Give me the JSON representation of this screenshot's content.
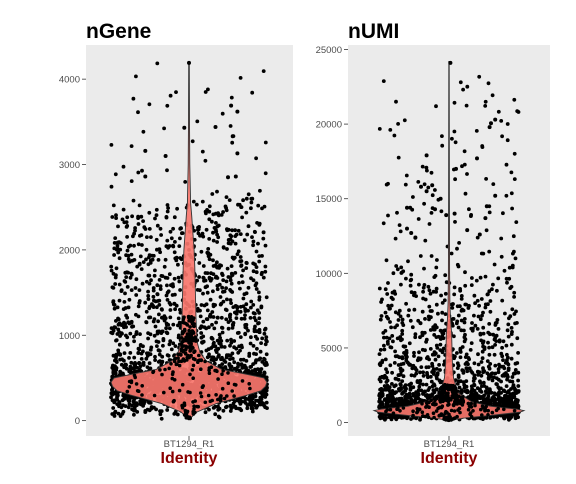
{
  "colors": {
    "panel_background": "#ebebeb",
    "violin_fill": "#f8766d",
    "violin_outline": "#333333",
    "point": "#000000",
    "axis_title": "#8b0000"
  },
  "chart_data": [
    {
      "type": "violin",
      "title": "nGene",
      "xlabel": "Identity",
      "ylabel": "",
      "categories": [
        "BT1294_R1"
      ],
      "ylim": [
        -180,
        4400
      ],
      "yticks": [
        0,
        1000,
        2000,
        3000,
        4000
      ],
      "grid": false,
      "legend": "none",
      "violin_profile": [
        [
          20,
          0.01
        ],
        [
          100,
          0.1
        ],
        [
          200,
          0.35
        ],
        [
          300,
          0.75
        ],
        [
          350,
          0.92
        ],
        [
          400,
          0.98
        ],
        [
          450,
          1.0
        ],
        [
          500,
          0.96
        ],
        [
          550,
          0.7
        ],
        [
          600,
          0.42
        ],
        [
          700,
          0.22
        ],
        [
          800,
          0.14
        ],
        [
          900,
          0.11
        ],
        [
          1000,
          0.1
        ],
        [
          1200,
          0.09
        ],
        [
          1400,
          0.085
        ],
        [
          1600,
          0.08
        ],
        [
          1800,
          0.075
        ],
        [
          2000,
          0.065
        ],
        [
          2200,
          0.05
        ],
        [
          2400,
          0.035
        ],
        [
          2550,
          0.02
        ],
        [
          3000,
          0.01
        ],
        [
          3500,
          0.007
        ],
        [
          4200,
          0.004
        ]
      ],
      "outliers": [
        {
          "x": 0.0,
          "y": 4190
        },
        {
          "x": 0.54,
          "y": 3690
        },
        {
          "x": 0.62,
          "y": 3620
        },
        {
          "x": -0.06,
          "y": 3430
        },
        {
          "x": 0.34,
          "y": 3440
        },
        {
          "x": 0.56,
          "y": 3330
        },
        {
          "x": -0.56,
          "y": 3160
        },
        {
          "x": -0.3,
          "y": 3100
        },
        {
          "x": 0.62,
          "y": 3130
        },
        {
          "x": -0.56,
          "y": 2860
        },
        {
          "x": 0.5,
          "y": 2850
        },
        {
          "x": 0.6,
          "y": 2860
        }
      ]
    },
    {
      "type": "violin",
      "title": "nUMI",
      "xlabel": "Identity",
      "ylabel": "",
      "categories": [
        "BT1294_R1"
      ],
      "ylim": [
        -900,
        25300
      ],
      "yticks": [
        0,
        5000,
        10000,
        15000,
        20000,
        25000
      ],
      "grid": false,
      "legend": "none",
      "violin_profile": [
        [
          150,
          0.01
        ],
        [
          300,
          0.2
        ],
        [
          500,
          0.6
        ],
        [
          700,
          0.95
        ],
        [
          800,
          1.0
        ],
        [
          900,
          0.9
        ],
        [
          1100,
          0.55
        ],
        [
          1400,
          0.3
        ],
        [
          2000,
          0.12
        ],
        [
          3000,
          0.06
        ],
        [
          4000,
          0.045
        ],
        [
          5000,
          0.04
        ],
        [
          6000,
          0.035
        ],
        [
          7000,
          0.02
        ],
        [
          8000,
          0.012
        ],
        [
          10000,
          0.008
        ],
        [
          15000,
          0.005
        ],
        [
          20000,
          0.004
        ],
        [
          24200,
          0.003
        ]
      ],
      "outliers": [
        {
          "x": 0.02,
          "y": 24100
        },
        {
          "x": 0.66,
          "y": 20300
        },
        {
          "x": 0.6,
          "y": 20050
        },
        {
          "x": 0.58,
          "y": 19800
        },
        {
          "x": -0.32,
          "y": 17900
        },
        {
          "x": 0.4,
          "y": 17700
        },
        {
          "x": 0.1,
          "y": 17000
        },
        {
          "x": -0.4,
          "y": 15800
        },
        {
          "x": -0.24,
          "y": 15900
        },
        {
          "x": -0.32,
          "y": 15500
        },
        {
          "x": -0.12,
          "y": 15000
        },
        {
          "x": 0.66,
          "y": 15200
        },
        {
          "x": -0.6,
          "y": 14400
        },
        {
          "x": 0.54,
          "y": 14500
        },
        {
          "x": -0.2,
          "y": 14300
        },
        {
          "x": -0.6,
          "y": 13000
        },
        {
          "x": -0.04,
          "y": 13900
        },
        {
          "x": 0.08,
          "y": 14000
        },
        {
          "x": 0.52,
          "y": 13700
        },
        {
          "x": -0.54,
          "y": 12700
        },
        {
          "x": 0.26,
          "y": 12900
        },
        {
          "x": 0.44,
          "y": 12600
        },
        {
          "x": -0.48,
          "y": 12400
        }
      ]
    }
  ]
}
